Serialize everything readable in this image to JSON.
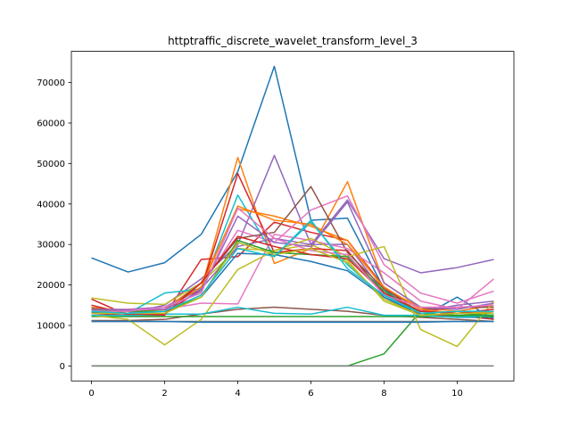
{
  "chart_data": {
    "type": "line",
    "title": "httptraffic_discrete_wavelet_transform_level_3",
    "xlabel": "",
    "ylabel": "",
    "x": [
      0,
      1,
      2,
      3,
      4,
      5,
      6,
      7,
      8,
      9,
      10,
      11
    ],
    "xlim": [
      -0.55,
      11.55
    ],
    "ylim": [
      -3700,
      77700
    ],
    "xticks": [
      0,
      2,
      4,
      6,
      8,
      10
    ],
    "yticks": [
      0,
      10000,
      20000,
      30000,
      40000,
      50000,
      60000,
      70000
    ],
    "grid": false,
    "legend": "none",
    "series": [
      {
        "color": "#1f77b4",
        "values": [
          26700,
          23200,
          25500,
          32500,
          48000,
          74000,
          36000,
          36500,
          19000,
          12000,
          17000,
          11500
        ]
      },
      {
        "color": "#ff7f0e",
        "values": [
          14500,
          13000,
          13000,
          19000,
          51500,
          25300,
          29000,
          45500,
          20500,
          14500,
          12000,
          13500
        ]
      },
      {
        "color": "#2ca02c",
        "values": [
          0,
          0,
          0,
          0,
          0,
          0,
          0,
          0,
          3000,
          13500,
          13000,
          12500
        ]
      },
      {
        "color": "#d62728",
        "values": [
          16500,
          12500,
          12500,
          26300,
          27000,
          35500,
          33000,
          31000,
          19500,
          12500,
          12500,
          11500
        ]
      },
      {
        "color": "#9467bd",
        "values": [
          13200,
          13000,
          15000,
          21500,
          30000,
          52000,
          30000,
          41000,
          26500,
          23000,
          24300,
          26300
        ]
      },
      {
        "color": "#8c564b",
        "values": [
          11200,
          11200,
          11500,
          12800,
          14000,
          14500,
          14000,
          13500,
          12500,
          12000,
          11500,
          11000
        ]
      },
      {
        "color": "#e377c2",
        "values": [
          14000,
          14000,
          14500,
          19500,
          33500,
          30500,
          38500,
          42000,
          25000,
          18000,
          15500,
          18500
        ]
      },
      {
        "color": "#7f7f7f",
        "values": [
          0,
          0,
          0,
          0,
          0,
          0,
          0,
          0,
          0,
          0,
          0,
          0
        ]
      },
      {
        "color": "#bcbd22",
        "values": [
          16800,
          15500,
          15200,
          20500,
          29000,
          28500,
          30000,
          26000,
          16000,
          12500,
          12000,
          12500
        ]
      },
      {
        "color": "#17becf",
        "values": [
          13000,
          13000,
          18000,
          19000,
          42200,
          27000,
          35500,
          25000,
          17000,
          13000,
          13500,
          13000
        ]
      },
      {
        "color": "#1f77b4",
        "values": [
          13200,
          13000,
          13000,
          17000,
          27800,
          27500,
          25800,
          23500,
          17000,
          12500,
          12000,
          12000
        ]
      },
      {
        "color": "#ff7f0e",
        "values": [
          14500,
          13500,
          14000,
          20500,
          38800,
          37000,
          34500,
          31000,
          19000,
          14500,
          13500,
          15000
        ]
      },
      {
        "color": "#2ca02c",
        "values": [
          12200,
          12200,
          12200,
          12200,
          12200,
          12200,
          12200,
          12200,
          12200,
          12200,
          12200,
          12200
        ]
      },
      {
        "color": "#d62728",
        "values": [
          13000,
          12500,
          12800,
          19000,
          47500,
          28000,
          29000,
          28500,
          17500,
          13500,
          14500,
          14500
        ]
      },
      {
        "color": "#9467bd",
        "values": [
          13800,
          14000,
          14500,
          19000,
          29500,
          31500,
          30000,
          30000,
          18000,
          13500,
          15000,
          16000
        ]
      },
      {
        "color": "#8c564b",
        "values": [
          14200,
          13500,
          13500,
          20500,
          31500,
          33000,
          44300,
          28000,
          19000,
          14000,
          14500,
          14500
        ]
      },
      {
        "color": "#e377c2",
        "values": [
          13500,
          14000,
          14000,
          15500,
          15300,
          32500,
          31000,
          29000,
          23000,
          16000,
          14000,
          21500
        ]
      },
      {
        "color": "#7f7f7f",
        "values": [
          11000,
          11000,
          11000,
          11000,
          11000,
          11000,
          11000,
          11000,
          11000,
          11000,
          11000,
          11000
        ]
      },
      {
        "color": "#bcbd22",
        "values": [
          12500,
          11500,
          5200,
          11500,
          23800,
          28500,
          31500,
          27000,
          29500,
          9000,
          4800,
          16000
        ]
      },
      {
        "color": "#17becf",
        "values": [
          12500,
          12500,
          12800,
          12800,
          14500,
          13000,
          12800,
          14500,
          12500,
          12500,
          12000,
          12500
        ]
      },
      {
        "color": "#1f77b4",
        "values": [
          11000,
          11000,
          11000,
          10800,
          10800,
          10800,
          10800,
          10800,
          10800,
          10800,
          11000,
          11000
        ]
      },
      {
        "color": "#ff7f0e",
        "values": [
          14000,
          13500,
          14000,
          19500,
          39500,
          36000,
          35000,
          30000,
          19500,
          14000,
          13000,
          13500
        ]
      },
      {
        "color": "#2ca02c",
        "values": [
          14000,
          13500,
          13500,
          17000,
          31000,
          28000,
          27500,
          27000,
          18500,
          13000,
          12500,
          12500
        ]
      },
      {
        "color": "#d62728",
        "values": [
          15000,
          12800,
          12800,
          20500,
          32000,
          29500,
          27500,
          26500,
          18000,
          13500,
          13000,
          14000
        ]
      },
      {
        "color": "#9467bd",
        "values": [
          14000,
          13800,
          14000,
          18500,
          37000,
          30500,
          29500,
          40500,
          20500,
          14500,
          14000,
          15500
        ]
      },
      {
        "color": "#e377c2",
        "values": [
          13500,
          13500,
          14500,
          18000,
          39000,
          31500,
          28500,
          27500,
          17500,
          14500,
          14500,
          15000
        ]
      },
      {
        "color": "#bcbd22",
        "values": [
          13000,
          13000,
          13000,
          17000,
          30500,
          27500,
          29000,
          25500,
          16500,
          12500,
          13000,
          13000
        ]
      },
      {
        "color": "#17becf",
        "values": [
          13500,
          13000,
          13500,
          17500,
          29000,
          27000,
          36000,
          24000,
          17500,
          13000,
          13500,
          13500
        ]
      }
    ]
  }
}
